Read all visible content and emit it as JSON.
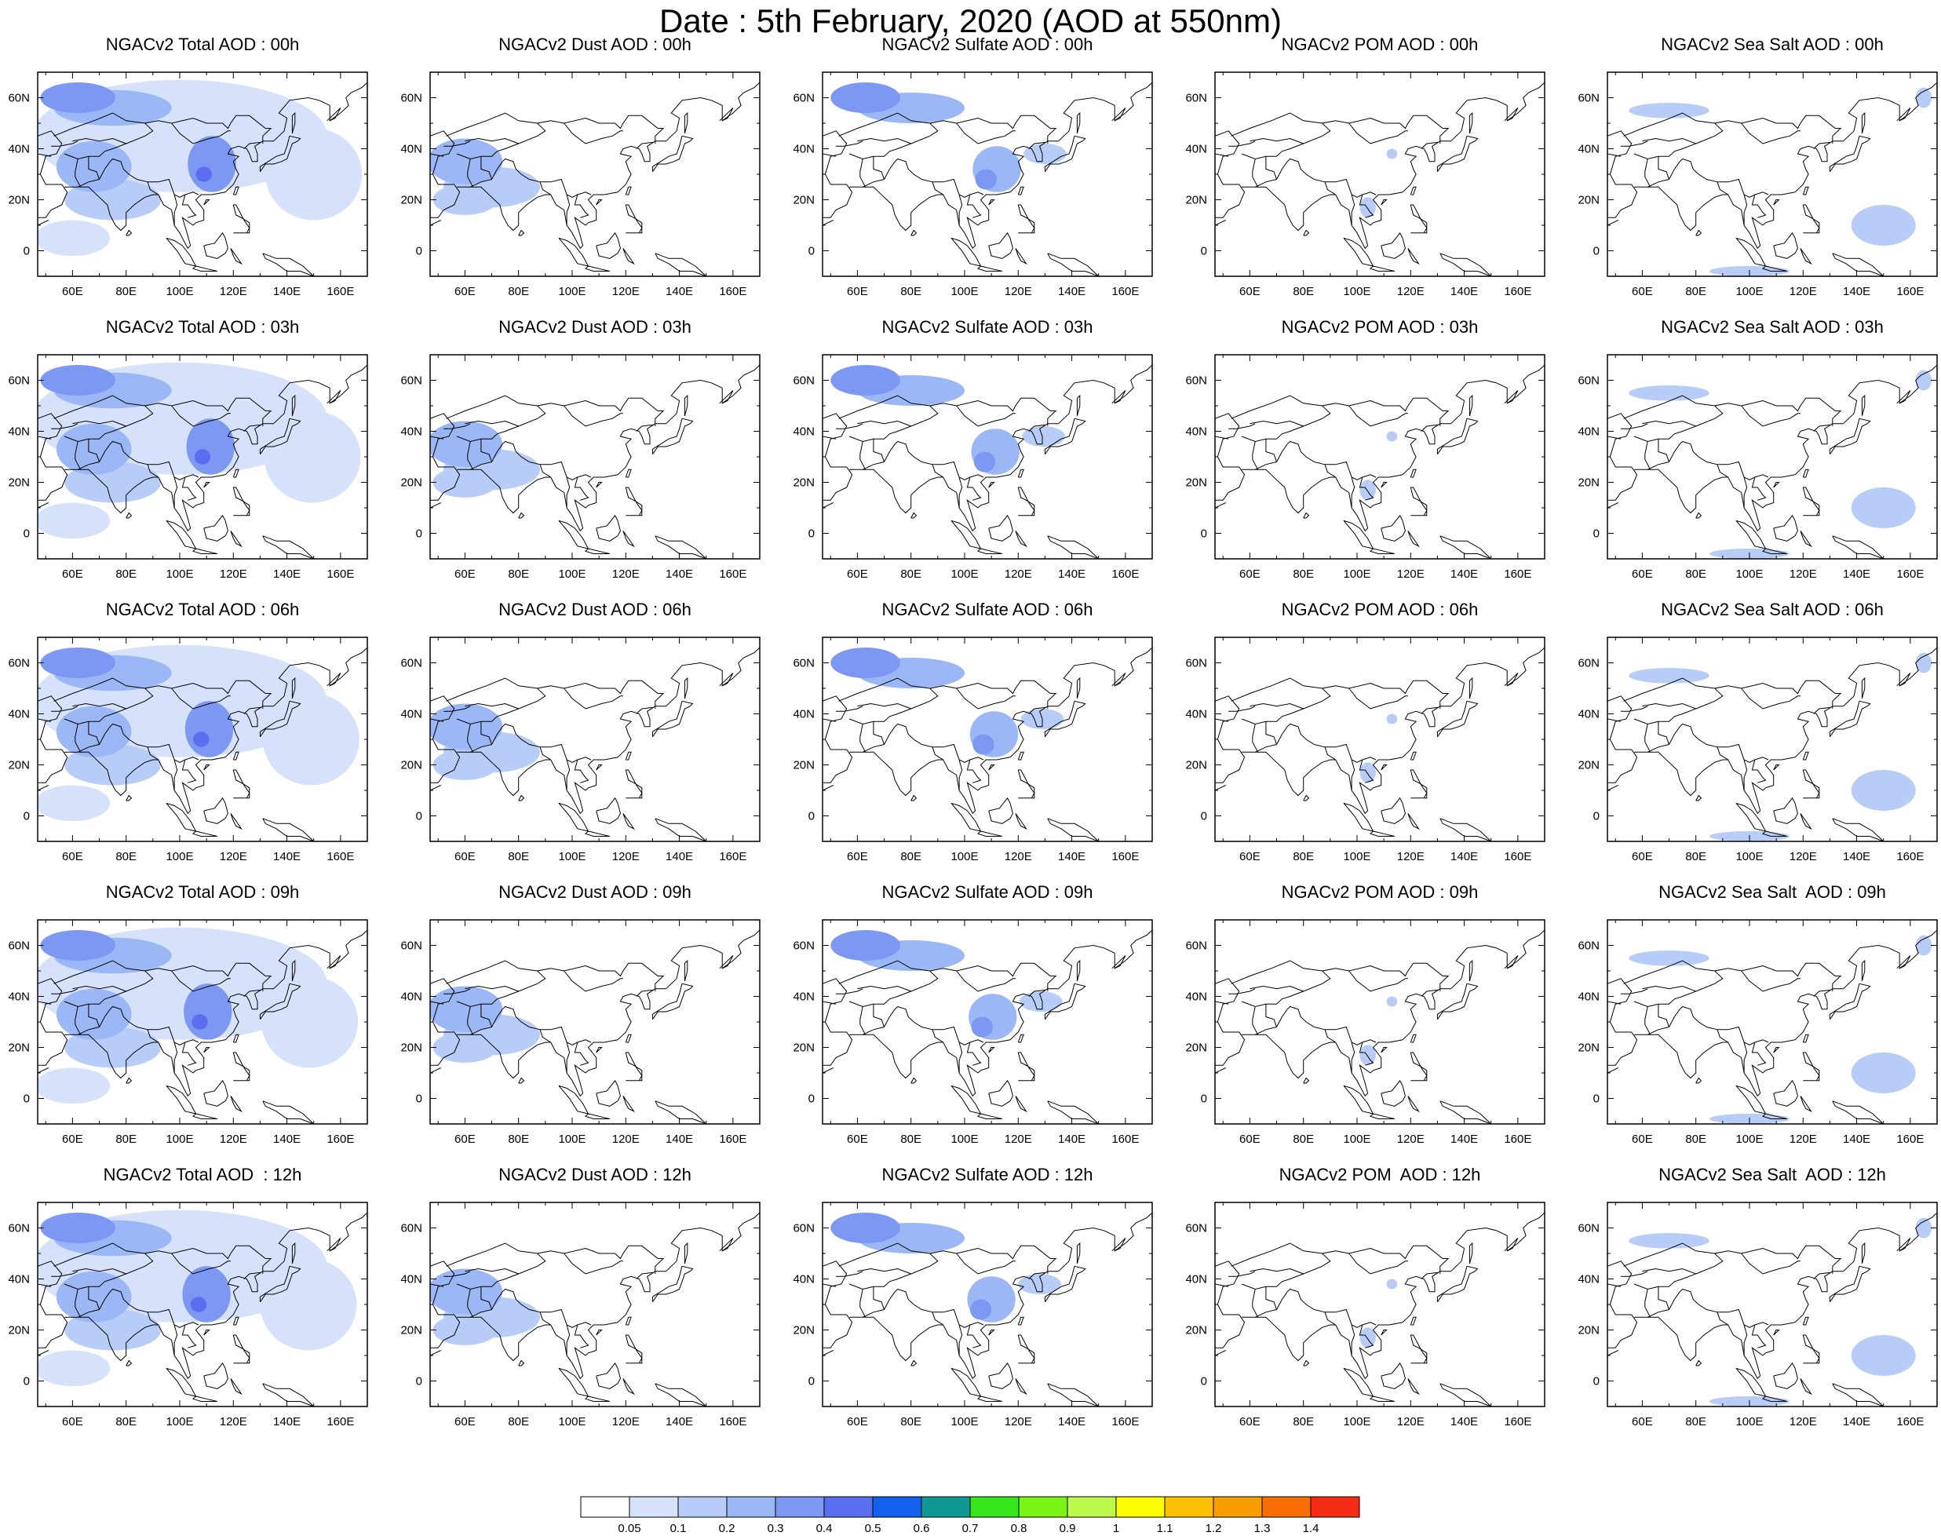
{
  "figure": {
    "title": "Date : 5th February, 2020 (AOD at 550nm)"
  },
  "panels": [
    {
      "title": "NGACv2 Total AOD : 00h",
      "species": "total",
      "hour": 0
    },
    {
      "title": "NGACv2 Dust AOD : 00h",
      "species": "dust",
      "hour": 0
    },
    {
      "title": "NGACv2 Sulfate AOD : 00h",
      "species": "sulfate",
      "hour": 0
    },
    {
      "title": "NGACv2 POM AOD : 00h",
      "species": "pom",
      "hour": 0
    },
    {
      "title": "NGACv2 Sea Salt AOD : 00h",
      "species": "seasalt",
      "hour": 0
    },
    {
      "title": "NGACv2 Total AOD : 03h",
      "species": "total",
      "hour": 3
    },
    {
      "title": "NGACv2 Dust AOD : 03h",
      "species": "dust",
      "hour": 3
    },
    {
      "title": "NGACv2 Sulfate AOD : 03h",
      "species": "sulfate",
      "hour": 3
    },
    {
      "title": "NGACv2 POM AOD : 03h",
      "species": "pom",
      "hour": 3
    },
    {
      "title": "NGACv2 Sea Salt AOD : 03h",
      "species": "seasalt",
      "hour": 3
    },
    {
      "title": "NGACv2 Total AOD : 06h",
      "species": "total",
      "hour": 6
    },
    {
      "title": "NGACv2 Dust AOD : 06h",
      "species": "dust",
      "hour": 6
    },
    {
      "title": "NGACv2 Sulfate AOD : 06h",
      "species": "sulfate",
      "hour": 6
    },
    {
      "title": "NGACv2 POM AOD : 06h",
      "species": "pom",
      "hour": 6
    },
    {
      "title": "NGACv2 Sea Salt AOD : 06h",
      "species": "seasalt",
      "hour": 6
    },
    {
      "title": "NGACv2 Total AOD : 09h",
      "species": "total",
      "hour": 9
    },
    {
      "title": "NGACv2 Dust AOD : 09h",
      "species": "dust",
      "hour": 9
    },
    {
      "title": "NGACv2 Sulfate AOD : 09h",
      "species": "sulfate",
      "hour": 9
    },
    {
      "title": "NGACv2 POM AOD : 09h",
      "species": "pom",
      "hour": 9
    },
    {
      "title": "NGACv2 Sea Salt  AOD : 09h",
      "species": "seasalt",
      "hour": 9
    },
    {
      "title": "NGACv2 Total AOD  : 12h",
      "species": "total",
      "hour": 12
    },
    {
      "title": "NGACv2 Dust AOD : 12h",
      "species": "dust",
      "hour": 12
    },
    {
      "title": "NGACv2 Sulfate AOD : 12h",
      "species": "sulfate",
      "hour": 12
    },
    {
      "title": "NGACv2 POM  AOD : 12h",
      "species": "pom",
      "hour": 12
    },
    {
      "title": "NGACv2 Sea Salt  AOD : 12h",
      "species": "seasalt",
      "hour": 12
    }
  ],
  "map": {
    "lon_range": [
      47,
      170
    ],
    "lat_range": [
      -10,
      70
    ],
    "x_ticks": [
      "60E",
      "80E",
      "100E",
      "120E",
      "140E",
      "160E"
    ],
    "x_tick_values": [
      60,
      80,
      100,
      120,
      140,
      160
    ],
    "y_ticks": [
      "0",
      "20N",
      "40N",
      "60N"
    ],
    "y_tick_values": [
      0,
      20,
      40,
      60
    ],
    "coastline_color": "#000000",
    "land_fill": "none"
  },
  "colorbar": {
    "labels": [
      "0.05",
      "0.1",
      "0.2",
      "0.3",
      "0.4",
      "0.5",
      "0.6",
      "0.7",
      "0.8",
      "0.9",
      "1",
      "1.1",
      "1.2",
      "1.3",
      "1.4"
    ],
    "colors": [
      "#ffffff",
      "#d6e2fb",
      "#b8ccf8",
      "#9cb7f5",
      "#7d98f2",
      "#5b6ef0",
      "#1261ec",
      "#0f9796",
      "#37e51d",
      "#79f313",
      "#bcf94c",
      "#fbfd00",
      "#fbc100",
      "#f99e00",
      "#f76d00",
      "#f42a13"
    ]
  },
  "chart_data": {
    "type": "heatmap",
    "title": "Date : 5th February, 2020 (AOD at 550nm)",
    "x_extent_deg_east": [
      47,
      170
    ],
    "y_extent_deg_north": [
      -10,
      70
    ],
    "levels": [
      0.05,
      0.1,
      0.2,
      0.3,
      0.4,
      0.5,
      0.6,
      0.7,
      0.8,
      0.9,
      1,
      1.1,
      1.2,
      1.3,
      1.4
    ],
    "plumes": {
      "total": [
        {
          "lon": 62,
          "lat": 60,
          "rlon": 14,
          "rlat": 6,
          "v": 0.3
        },
        {
          "lon": 75,
          "lat": 56,
          "rlon": 22,
          "rlat": 7,
          "v": 0.2
        },
        {
          "lon": 112,
          "lat": 34,
          "rlon": 9,
          "rlat": 11,
          "v": 0.3
        },
        {
          "lon": 109,
          "lat": 30,
          "rlon": 3,
          "rlat": 3,
          "v": 0.4
        },
        {
          "lon": 68,
          "lat": 33,
          "rlon": 14,
          "rlat": 10,
          "v": 0.2
        },
        {
          "lon": 75,
          "lat": 20,
          "rlon": 18,
          "rlat": 8,
          "v": 0.1
        },
        {
          "lon": 100,
          "lat": 45,
          "rlon": 55,
          "rlat": 22,
          "v": 0.07
        },
        {
          "lon": 150,
          "lat": 30,
          "rlon": 18,
          "rlat": 18,
          "v": 0.07
        },
        {
          "lon": 60,
          "lat": 5,
          "rlon": 14,
          "rlat": 7,
          "v": 0.07
        }
      ],
      "dust": [
        {
          "lon": 60,
          "lat": 35,
          "rlon": 14,
          "rlat": 9,
          "v": 0.2
        },
        {
          "lon": 70,
          "lat": 25,
          "rlon": 18,
          "rlat": 8,
          "v": 0.1
        },
        {
          "lon": 60,
          "lat": 20,
          "rlon": 12,
          "rlat": 6,
          "v": 0.1
        }
      ],
      "sulfate": [
        {
          "lon": 63,
          "lat": 60,
          "rlon": 13,
          "rlat": 6,
          "v": 0.3
        },
        {
          "lon": 80,
          "lat": 56,
          "rlon": 20,
          "rlat": 6,
          "v": 0.2
        },
        {
          "lon": 112,
          "lat": 32,
          "rlon": 9,
          "rlat": 9,
          "v": 0.2
        },
        {
          "lon": 108,
          "lat": 28,
          "rlon": 4,
          "rlat": 4,
          "v": 0.3
        },
        {
          "lon": 130,
          "lat": 38,
          "rlon": 8,
          "rlat": 4,
          "v": 0.1
        }
      ],
      "pom": [
        {
          "lon": 104,
          "lat": 17,
          "rlon": 3,
          "rlat": 4,
          "v": 0.1
        },
        {
          "lon": 113,
          "lat": 38,
          "rlon": 2,
          "rlat": 2,
          "v": 0.1
        }
      ],
      "seasalt": [
        {
          "lon": 70,
          "lat": 55,
          "rlon": 15,
          "rlat": 3,
          "v": 0.1
        },
        {
          "lon": 150,
          "lat": 10,
          "rlon": 12,
          "rlat": 8,
          "v": 0.1
        },
        {
          "lon": 165,
          "lat": 60,
          "rlon": 3,
          "rlat": 4,
          "v": 0.1
        },
        {
          "lon": 100,
          "lat": -8,
          "rlon": 15,
          "rlat": 2,
          "v": 0.1
        }
      ]
    }
  }
}
